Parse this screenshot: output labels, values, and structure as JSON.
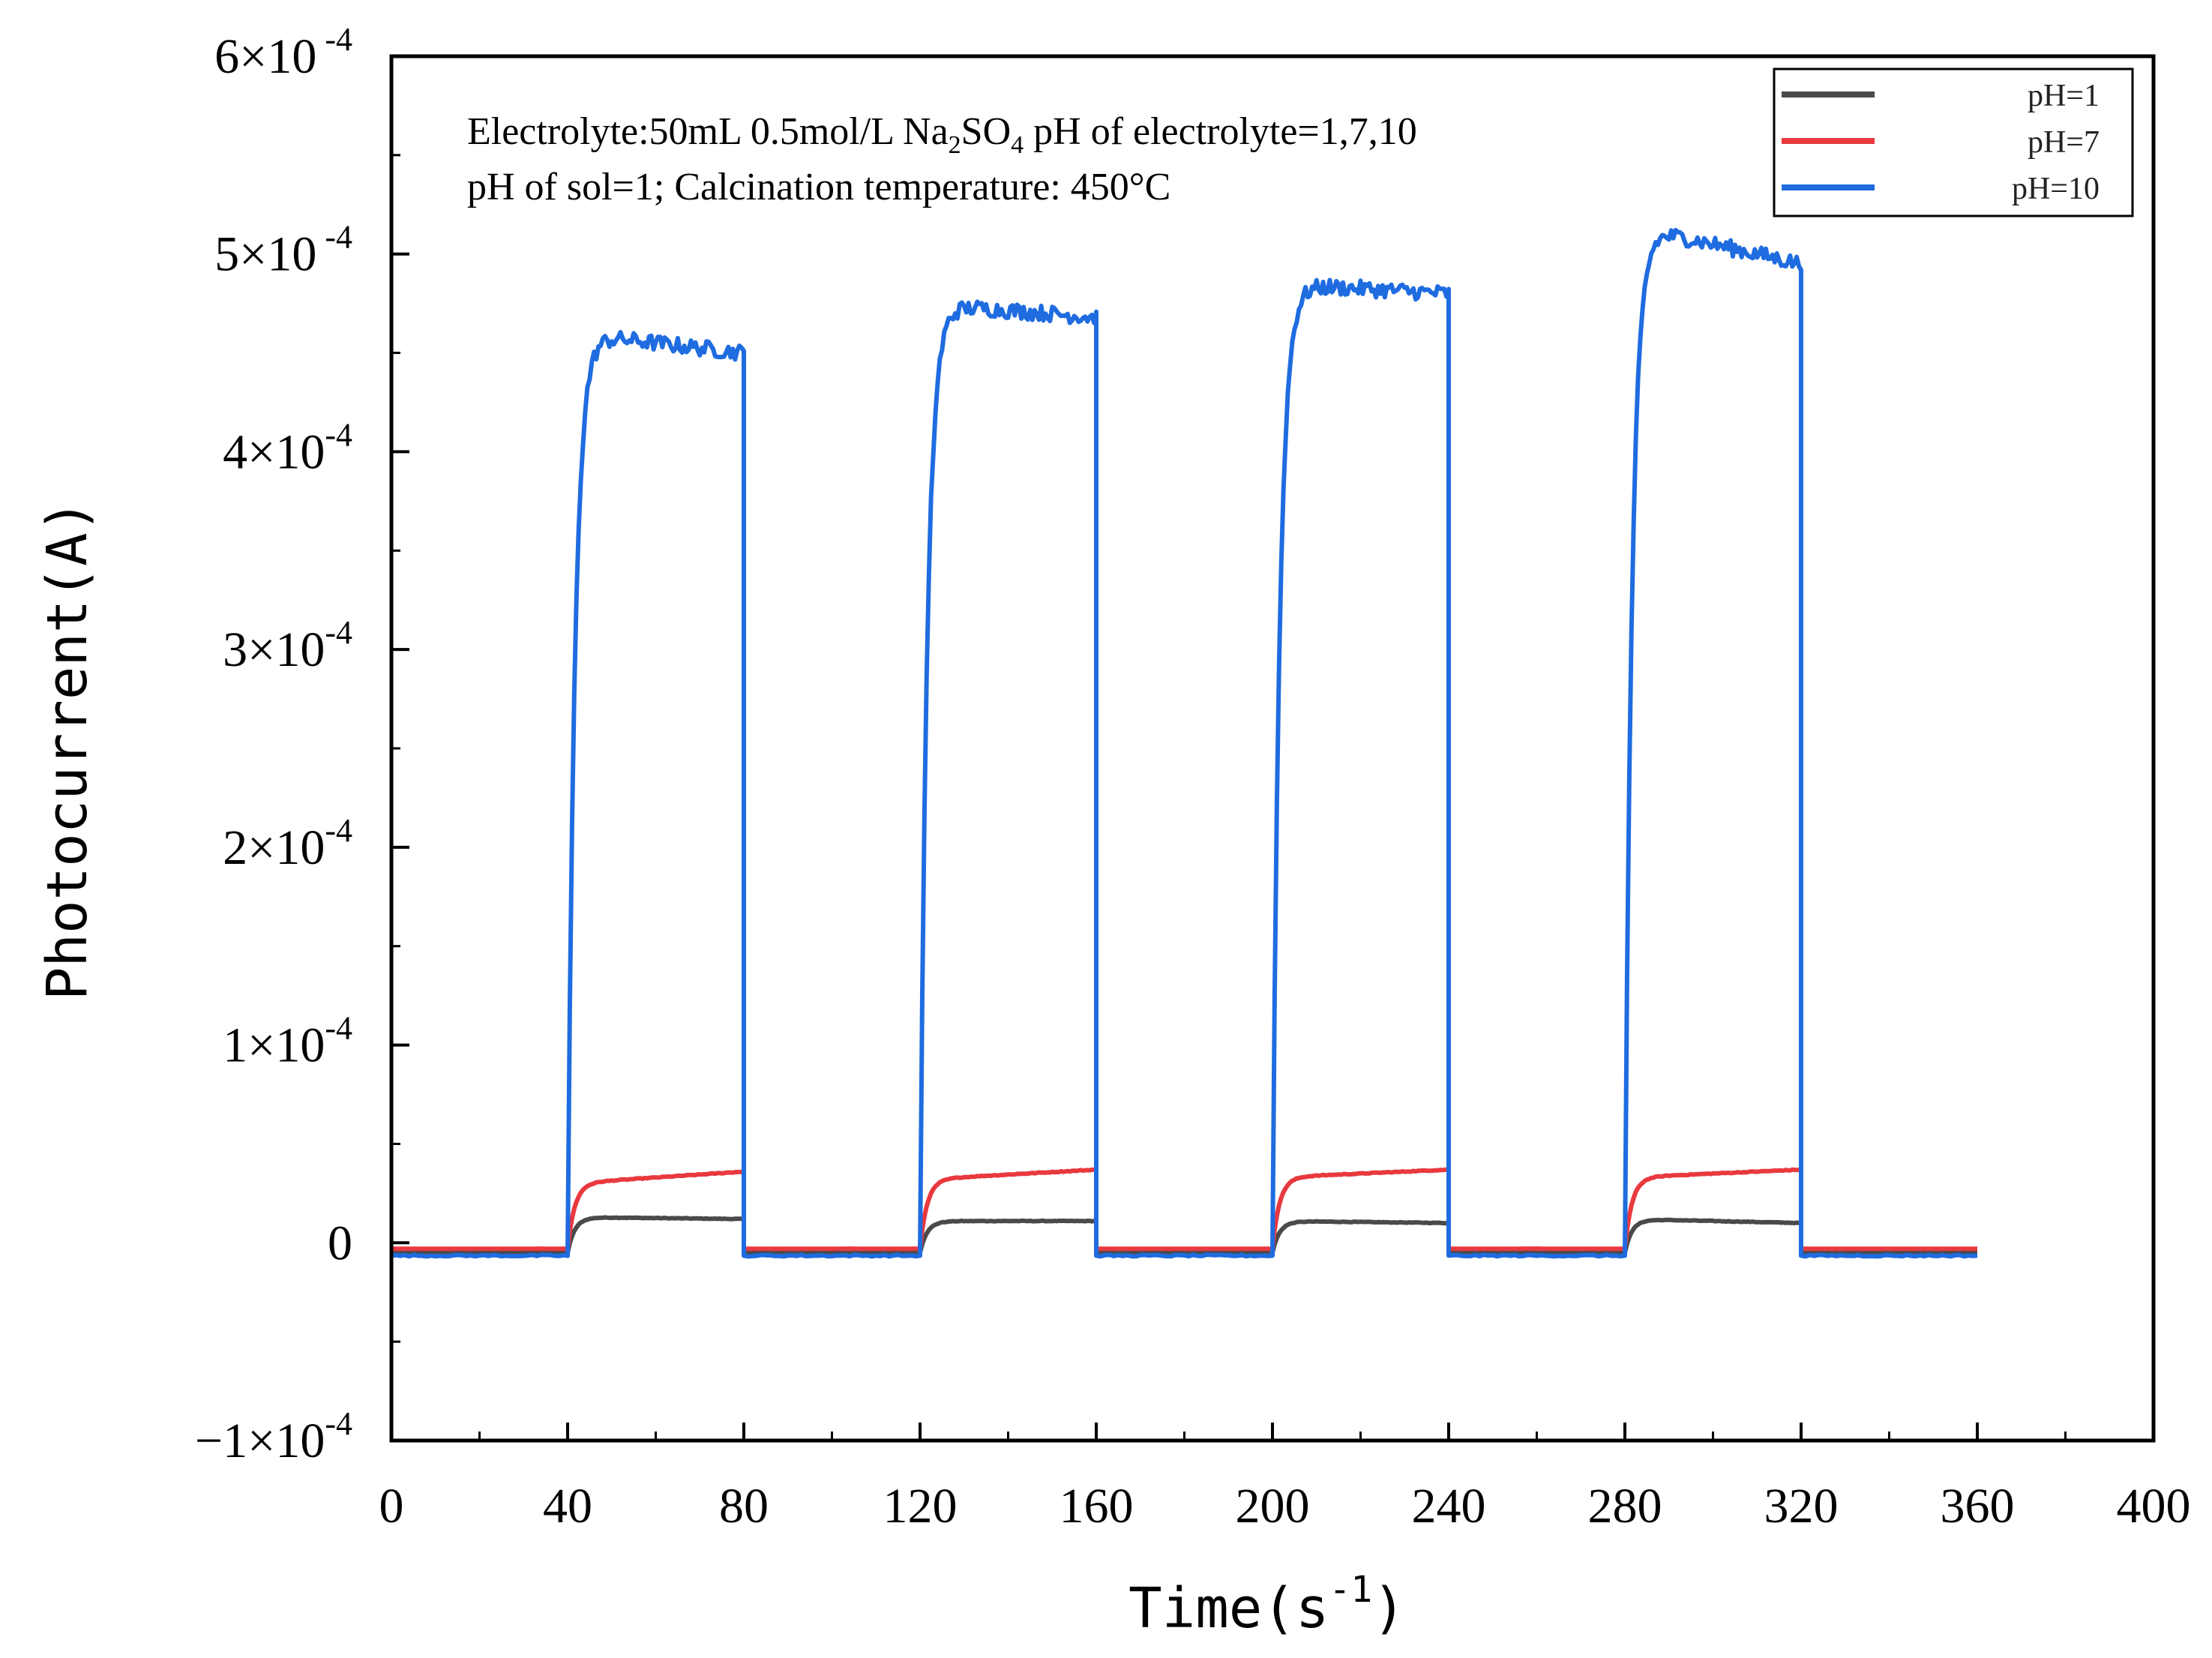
{
  "chart_data": {
    "type": "line",
    "title": "",
    "xlabel": "Time(s",
    "xlabel_sup": "-1",
    "xlabel_close": ")",
    "ylabel": "Photocurrent(A)",
    "xlim": [
      0,
      400
    ],
    "ylim": [
      -0.0001,
      0.0006
    ],
    "x_ticks": [
      0,
      40,
      80,
      120,
      160,
      200,
      240,
      280,
      320,
      360,
      400
    ],
    "x_tick_labels": [
      "0",
      "40",
      "80",
      "120",
      "160",
      "200",
      "240",
      "280",
      "320",
      "360",
      "400"
    ],
    "y_ticks": [
      {
        "value": 0.0006,
        "mantissa": "6",
        "times": "×",
        "base": "10",
        "exp": " -4"
      },
      {
        "value": 0.0005,
        "mantissa": "5",
        "times": "×",
        "base": "10",
        "exp": " -4"
      },
      {
        "value": 0.0004,
        "mantissa": "4",
        "times": "×",
        "base": "10",
        "exp": "-4"
      },
      {
        "value": 0.0003,
        "mantissa": "3",
        "times": "×",
        "base": "10",
        "exp": "-4"
      },
      {
        "value": 0.0002,
        "mantissa": "2",
        "times": "×",
        "base": "10",
        "exp": "-4"
      },
      {
        "value": 0.0001,
        "mantissa": "1",
        "times": "×",
        "base": "10",
        "exp": "-4"
      },
      {
        "value": 0,
        "mantissa": "0",
        "times": "",
        "base": "",
        "exp": ""
      },
      {
        "value": -0.0001,
        "mantissa": "−1",
        "times": "×",
        "base": "10",
        "exp": "-4"
      }
    ],
    "light_cycles": [
      {
        "on": 40,
        "off": 80
      },
      {
        "on": 120,
        "off": 160
      },
      {
        "on": 200,
        "off": 240
      },
      {
        "on": 280,
        "off": 320
      }
    ],
    "time_end": 360,
    "series": [
      {
        "name": "pH=1",
        "color": "#4a4a4a",
        "dark_value": -5e-06,
        "on_values": [
          1.3e-05,
          1.1e-05,
          1.1e-05,
          1.2e-05
        ],
        "on_end_values": [
          1.2e-05,
          1.1e-05,
          1e-05,
          1e-05
        ],
        "noise": 3e-07
      },
      {
        "name": "pH=7",
        "color": "#e8393f",
        "dark_value": -3e-06,
        "on_values": [
          3e-05,
          3.2e-05,
          3.3e-05,
          3.3e-05
        ],
        "on_end_values": [
          3.6e-05,
          3.7e-05,
          3.7e-05,
          3.7e-05
        ],
        "noise": 4e-07
      },
      {
        "name": "pH=10",
        "color": "#1f6ce0",
        "dark_value": -6.5e-06,
        "on_values": [
          0.00046,
          0.000475,
          0.000485,
          0.000515
        ],
        "on_end_values": [
          0.00045,
          0.000468,
          0.00048,
          0.000495
        ],
        "noise": 8e-06
      }
    ],
    "annotations": {
      "line1_prefix": "Electrolyte:50mL 0.5mol/L Na",
      "line1_sub1": "2",
      "line1_mid": "SO",
      "line1_sub2": "4",
      "line1_suffix": "  pH of electrolyte=1,7,10",
      "line2": "pH of sol=1;  Calcination temperature: 450°C"
    },
    "legend": {
      "position": "top-right",
      "entries": [
        "pH=1",
        "pH=7",
        "pH=10"
      ]
    }
  }
}
